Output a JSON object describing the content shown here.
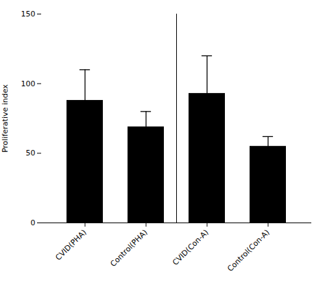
{
  "chart_data": {
    "type": "bar",
    "categories": [
      "CVID(PHA)",
      "Control(PHA)",
      "CVID(Con-A)",
      "Control(Con-A)"
    ],
    "values": [
      88,
      69,
      93,
      55
    ],
    "errors": [
      22,
      11,
      27,
      7
    ],
    "ylabel": "Proliferative index",
    "ylim": [
      0,
      150
    ],
    "yticks": [
      0,
      50,
      100,
      150
    ],
    "grid": false
  }
}
